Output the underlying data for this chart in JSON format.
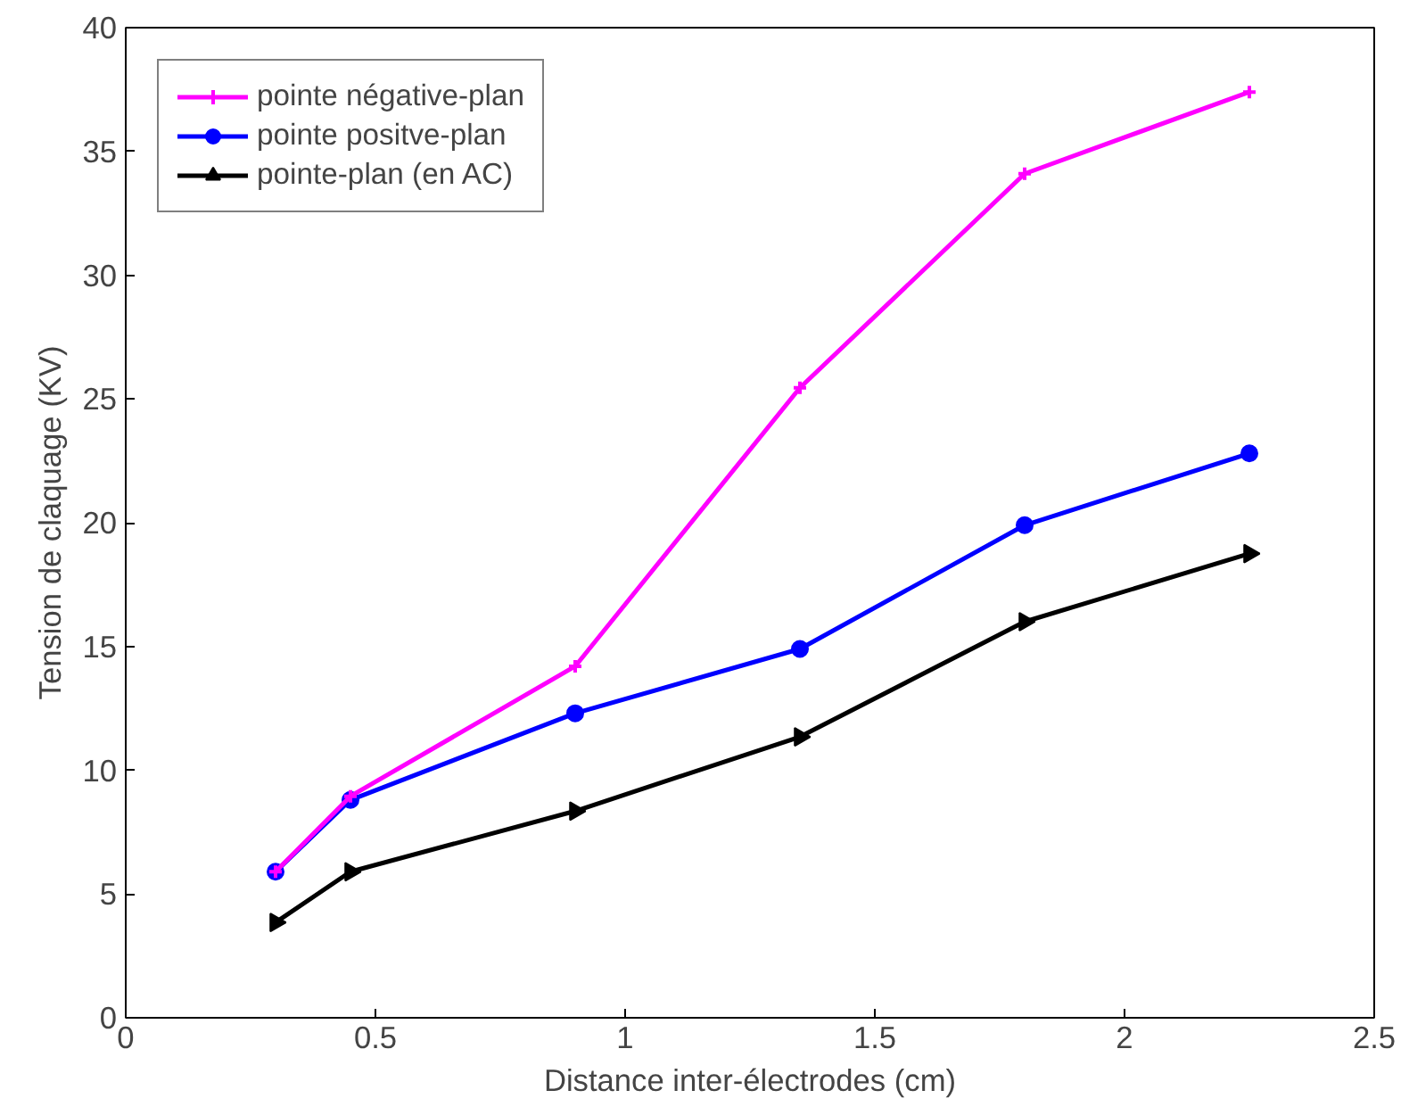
{
  "chart_data": {
    "type": "line",
    "xlabel": "Distance inter-électrodes (cm)",
    "ylabel": "Tension de claquage (KV)",
    "x": [
      0.3,
      0.45,
      0.9,
      1.35,
      1.8,
      2.25
    ],
    "series": [
      {
        "name": "pointe négative-plan",
        "color": "#ff00ff",
        "marker": "cross",
        "values": [
          5.9,
          8.95,
          14.2,
          25.45,
          34.1,
          37.4
        ]
      },
      {
        "name": "pointe positve-plan",
        "color": "#0000ff",
        "marker": "circle",
        "values": [
          5.9,
          8.8,
          12.3,
          14.9,
          19.9,
          22.8
        ]
      },
      {
        "name": "pointe-plan (en AC)",
        "color": "#000000",
        "marker": "triangle",
        "values": [
          3.85,
          5.9,
          8.35,
          11.35,
          16.0,
          18.75
        ]
      }
    ],
    "xlim": [
      0,
      2.5
    ],
    "xticks": [
      0,
      0.5,
      1,
      1.5,
      2,
      2.5
    ],
    "ylim": [
      0,
      40
    ],
    "yticks": [
      0,
      5,
      10,
      15,
      20,
      25,
      30,
      35,
      40
    ],
    "grid": false,
    "legend": "top left",
    "line_style": "solid"
  }
}
